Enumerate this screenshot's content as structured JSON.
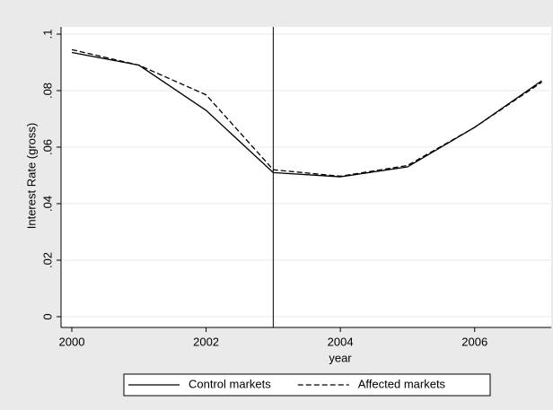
{
  "chart_data": {
    "type": "line",
    "x_label": "year",
    "y_label": "Interest Rate (gross)",
    "x": [
      2000,
      2001,
      2002,
      2003,
      2004,
      2005,
      2006,
      2007
    ],
    "series": [
      {
        "name": "Control markets",
        "color": "#000000",
        "dash": "solid",
        "values": [
          0.0935,
          0.089,
          0.073,
          0.051,
          0.0495,
          0.053,
          0.067,
          0.0835
        ]
      },
      {
        "name": "Affected markets",
        "color": "#000000",
        "dash": "dashed",
        "values": [
          0.0945,
          0.089,
          0.0785,
          0.052,
          0.0497,
          0.0535,
          0.067,
          0.083
        ]
      }
    ],
    "xlim": [
      2000,
      2007
    ],
    "xticks": [
      2000,
      2002,
      2004,
      2006
    ],
    "ylim": [
      0,
      0.1
    ],
    "yticks": [
      0,
      {
        "value": 0.02,
        "label": ".02"
      },
      {
        "value": 0.04,
        "label": ".04"
      },
      {
        "value": 0.06,
        "label": ".06"
      },
      {
        "value": 0.08,
        "label": ".08"
      },
      {
        "value": 0.1,
        "label": ".1"
      }
    ],
    "vline": 2003,
    "grid": true,
    "legend": "bottom"
  }
}
